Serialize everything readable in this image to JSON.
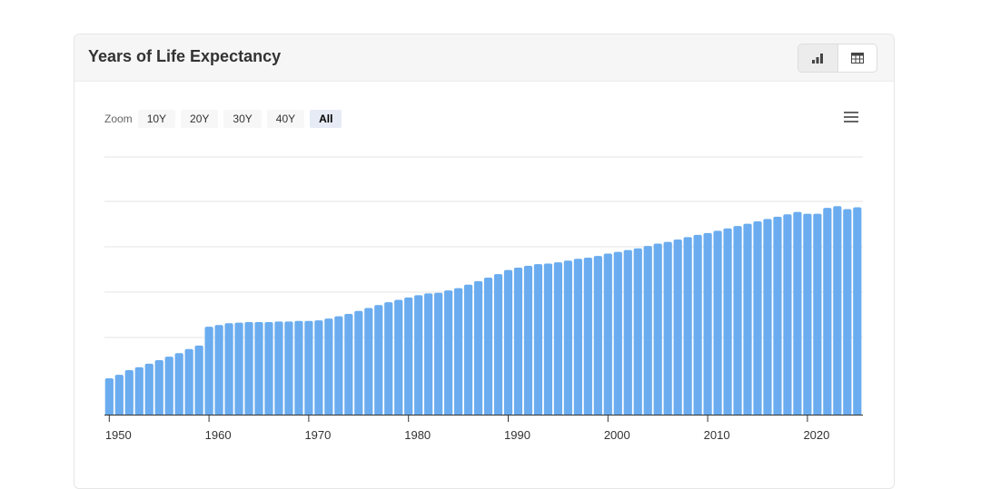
{
  "card": {
    "title": "Years of Life Expectancy",
    "view_buttons": [
      "chart-view",
      "table-view"
    ]
  },
  "zoom": {
    "label": "Zoom",
    "buttons": [
      "10Y",
      "20Y",
      "30Y",
      "40Y",
      "All"
    ],
    "active": "All"
  },
  "colors": {
    "bar": "#6aacef",
    "grid": "#e6e6e6",
    "axis": "#333333"
  },
  "chart_data": {
    "type": "bar",
    "title": "Years of Life Expectancy",
    "xlabel": "",
    "ylabel": "",
    "x_ticks": [
      "1950",
      "1960",
      "1970",
      "1980",
      "1990",
      "2000",
      "2010",
      "2020"
    ],
    "y_tick_labels_visible": false,
    "grid": true,
    "ylim": [
      36,
      80
    ],
    "x": [
      1950,
      1951,
      1952,
      1953,
      1954,
      1955,
      1956,
      1957,
      1958,
      1959,
      1960,
      1961,
      1962,
      1963,
      1964,
      1965,
      1966,
      1967,
      1968,
      1969,
      1970,
      1971,
      1972,
      1973,
      1974,
      1975,
      1976,
      1977,
      1978,
      1979,
      1980,
      1981,
      1982,
      1983,
      1984,
      1985,
      1986,
      1987,
      1988,
      1989,
      1990,
      1991,
      1992,
      1993,
      1994,
      1995,
      1996,
      1997,
      1998,
      1999,
      2000,
      2001,
      2002,
      2003,
      2004,
      2005,
      2006,
      2007,
      2008,
      2009,
      2010,
      2011,
      2012,
      2013,
      2014,
      2015,
      2016,
      2017,
      2018,
      2019,
      2020,
      2021,
      2022,
      2023,
      2024,
      2025
    ],
    "values": [
      42.2,
      42.8,
      43.6,
      44.1,
      44.7,
      45.3,
      45.9,
      46.5,
      47.2,
      47.8,
      51.0,
      51.3,
      51.6,
      51.7,
      51.8,
      51.8,
      51.8,
      51.9,
      51.9,
      52.0,
      52.0,
      52.1,
      52.4,
      52.8,
      53.2,
      53.7,
      54.2,
      54.7,
      55.2,
      55.6,
      56.0,
      56.4,
      56.7,
      56.8,
      57.2,
      57.6,
      58.2,
      58.8,
      59.4,
      60.0,
      60.7,
      61.1,
      61.4,
      61.7,
      61.8,
      62.0,
      62.3,
      62.6,
      62.8,
      63.1,
      63.5,
      63.8,
      64.1,
      64.4,
      64.8,
      65.2,
      65.5,
      65.9,
      66.3,
      66.7,
      67.0,
      67.4,
      67.8,
      68.2,
      68.6,
      69.0,
      69.4,
      69.8,
      70.2,
      70.6,
      70.3,
      70.3,
      71.3,
      71.6,
      71.1,
      71.4
    ]
  }
}
